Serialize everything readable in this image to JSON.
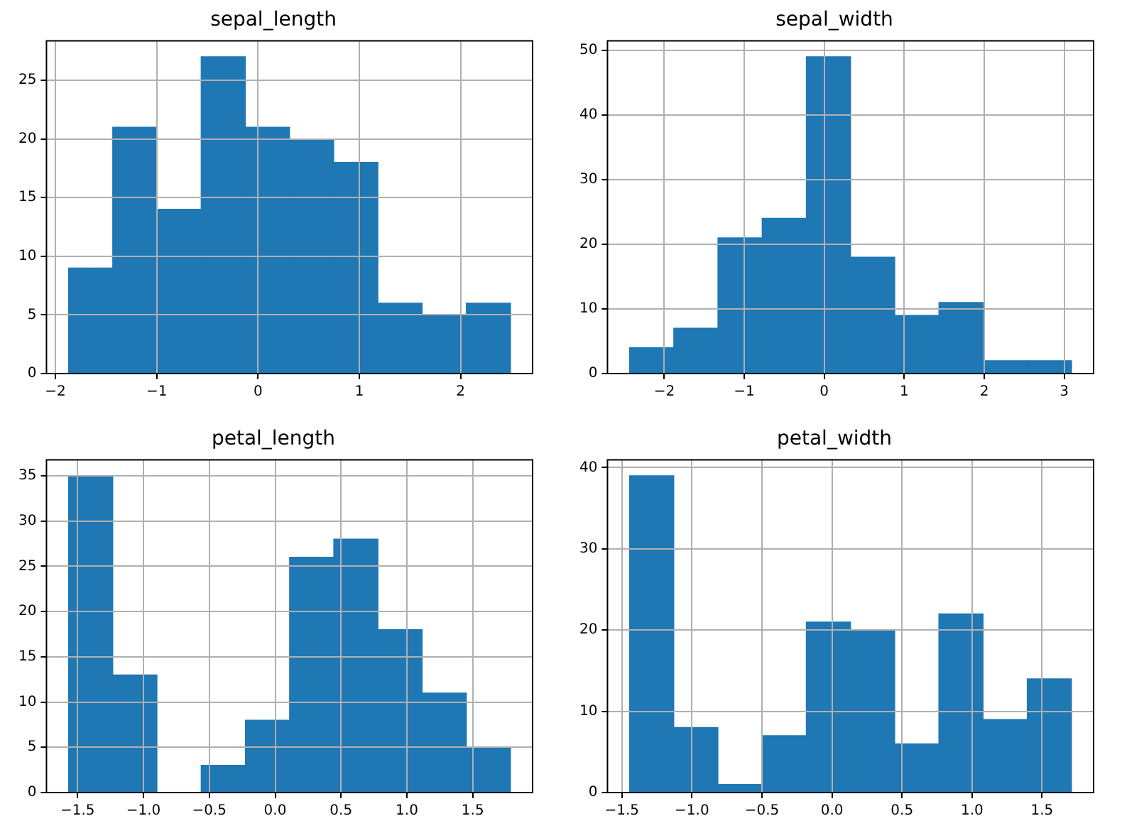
{
  "chart_data": [
    {
      "type": "histogram",
      "title": "sepal_length",
      "bins": [
        -1.87,
        -1.434,
        -0.998,
        -0.561,
        -0.125,
        0.311,
        0.747,
        1.183,
        1.62,
        2.056,
        2.492
      ],
      "values": [
        9,
        21,
        14,
        27,
        21,
        20,
        18,
        6,
        5,
        6
      ],
      "color": "#1f77b4",
      "xlim": [
        -2.088,
        2.71
      ],
      "ylim": [
        0,
        28.35
      ],
      "xticks": [
        {
          "value": -2,
          "label": "−2"
        },
        {
          "value": -1,
          "label": "−1"
        },
        0,
        1,
        2
      ],
      "yticks": [
        0,
        5,
        10,
        15,
        20,
        25
      ],
      "grid": true
    },
    {
      "type": "histogram",
      "title": "sepal_width",
      "bins": [
        -2.434,
        -1.881,
        -1.329,
        -0.776,
        -0.224,
        0.329,
        0.881,
        1.434,
        1.986,
        2.539,
        3.091
      ],
      "values": [
        4,
        7,
        21,
        24,
        49,
        18,
        9,
        11,
        2,
        2
      ],
      "color": "#1f77b4",
      "xlim": [
        -2.71,
        3.367
      ],
      "ylim": [
        0,
        51.45
      ],
      "xticks": [
        {
          "value": -2,
          "label": "−2"
        },
        {
          "value": -1,
          "label": "−1"
        },
        0,
        1,
        2,
        3
      ],
      "yticks": [
        0,
        10,
        20,
        30,
        40,
        50
      ],
      "grid": true
    },
    {
      "type": "histogram",
      "title": "petal_length",
      "bins": [
        -1.568,
        -1.233,
        -0.897,
        -0.562,
        -0.226,
        0.109,
        0.445,
        0.78,
        1.116,
        1.451,
        1.786
      ],
      "values": [
        35,
        13,
        0,
        3,
        8,
        26,
        28,
        18,
        11,
        5
      ],
      "color": "#1f77b4",
      "xlim": [
        -1.736,
        1.954
      ],
      "ylim": [
        0,
        36.75
      ],
      "xticks": [
        {
          "value": -1.5,
          "label": "−1.5"
        },
        {
          "value": -1,
          "label": "−1.0"
        },
        {
          "value": -0.5,
          "label": "−0.5"
        },
        {
          "value": 0,
          "label": "0.0"
        },
        {
          "value": 0.5,
          "label": "0.5"
        },
        {
          "value": 1,
          "label": "1.0"
        },
        {
          "value": 1.5,
          "label": "1.5"
        }
      ],
      "yticks": [
        0,
        5,
        10,
        15,
        20,
        25,
        30,
        35
      ],
      "grid": true
    },
    {
      "type": "histogram",
      "title": "petal_width",
      "bins": [
        -1.445,
        -1.13,
        -0.814,
        -0.499,
        -0.183,
        0.132,
        0.448,
        0.763,
        1.079,
        1.394,
        1.71
      ],
      "values": [
        39,
        8,
        1,
        7,
        21,
        20,
        6,
        22,
        9,
        14
      ],
      "color": "#1f77b4",
      "xlim": [
        -1.603,
        1.868
      ],
      "ylim": [
        0,
        40.95
      ],
      "xticks": [
        {
          "value": -1.5,
          "label": "−1.5"
        },
        {
          "value": -1,
          "label": "−1.0"
        },
        {
          "value": -0.5,
          "label": "−0.5"
        },
        {
          "value": 0,
          "label": "0.0"
        },
        {
          "value": 0.5,
          "label": "0.5"
        },
        {
          "value": 1,
          "label": "1.0"
        },
        {
          "value": 1.5,
          "label": "1.5"
        }
      ],
      "yticks": [
        0,
        10,
        20,
        30,
        40
      ],
      "grid": true
    }
  ]
}
